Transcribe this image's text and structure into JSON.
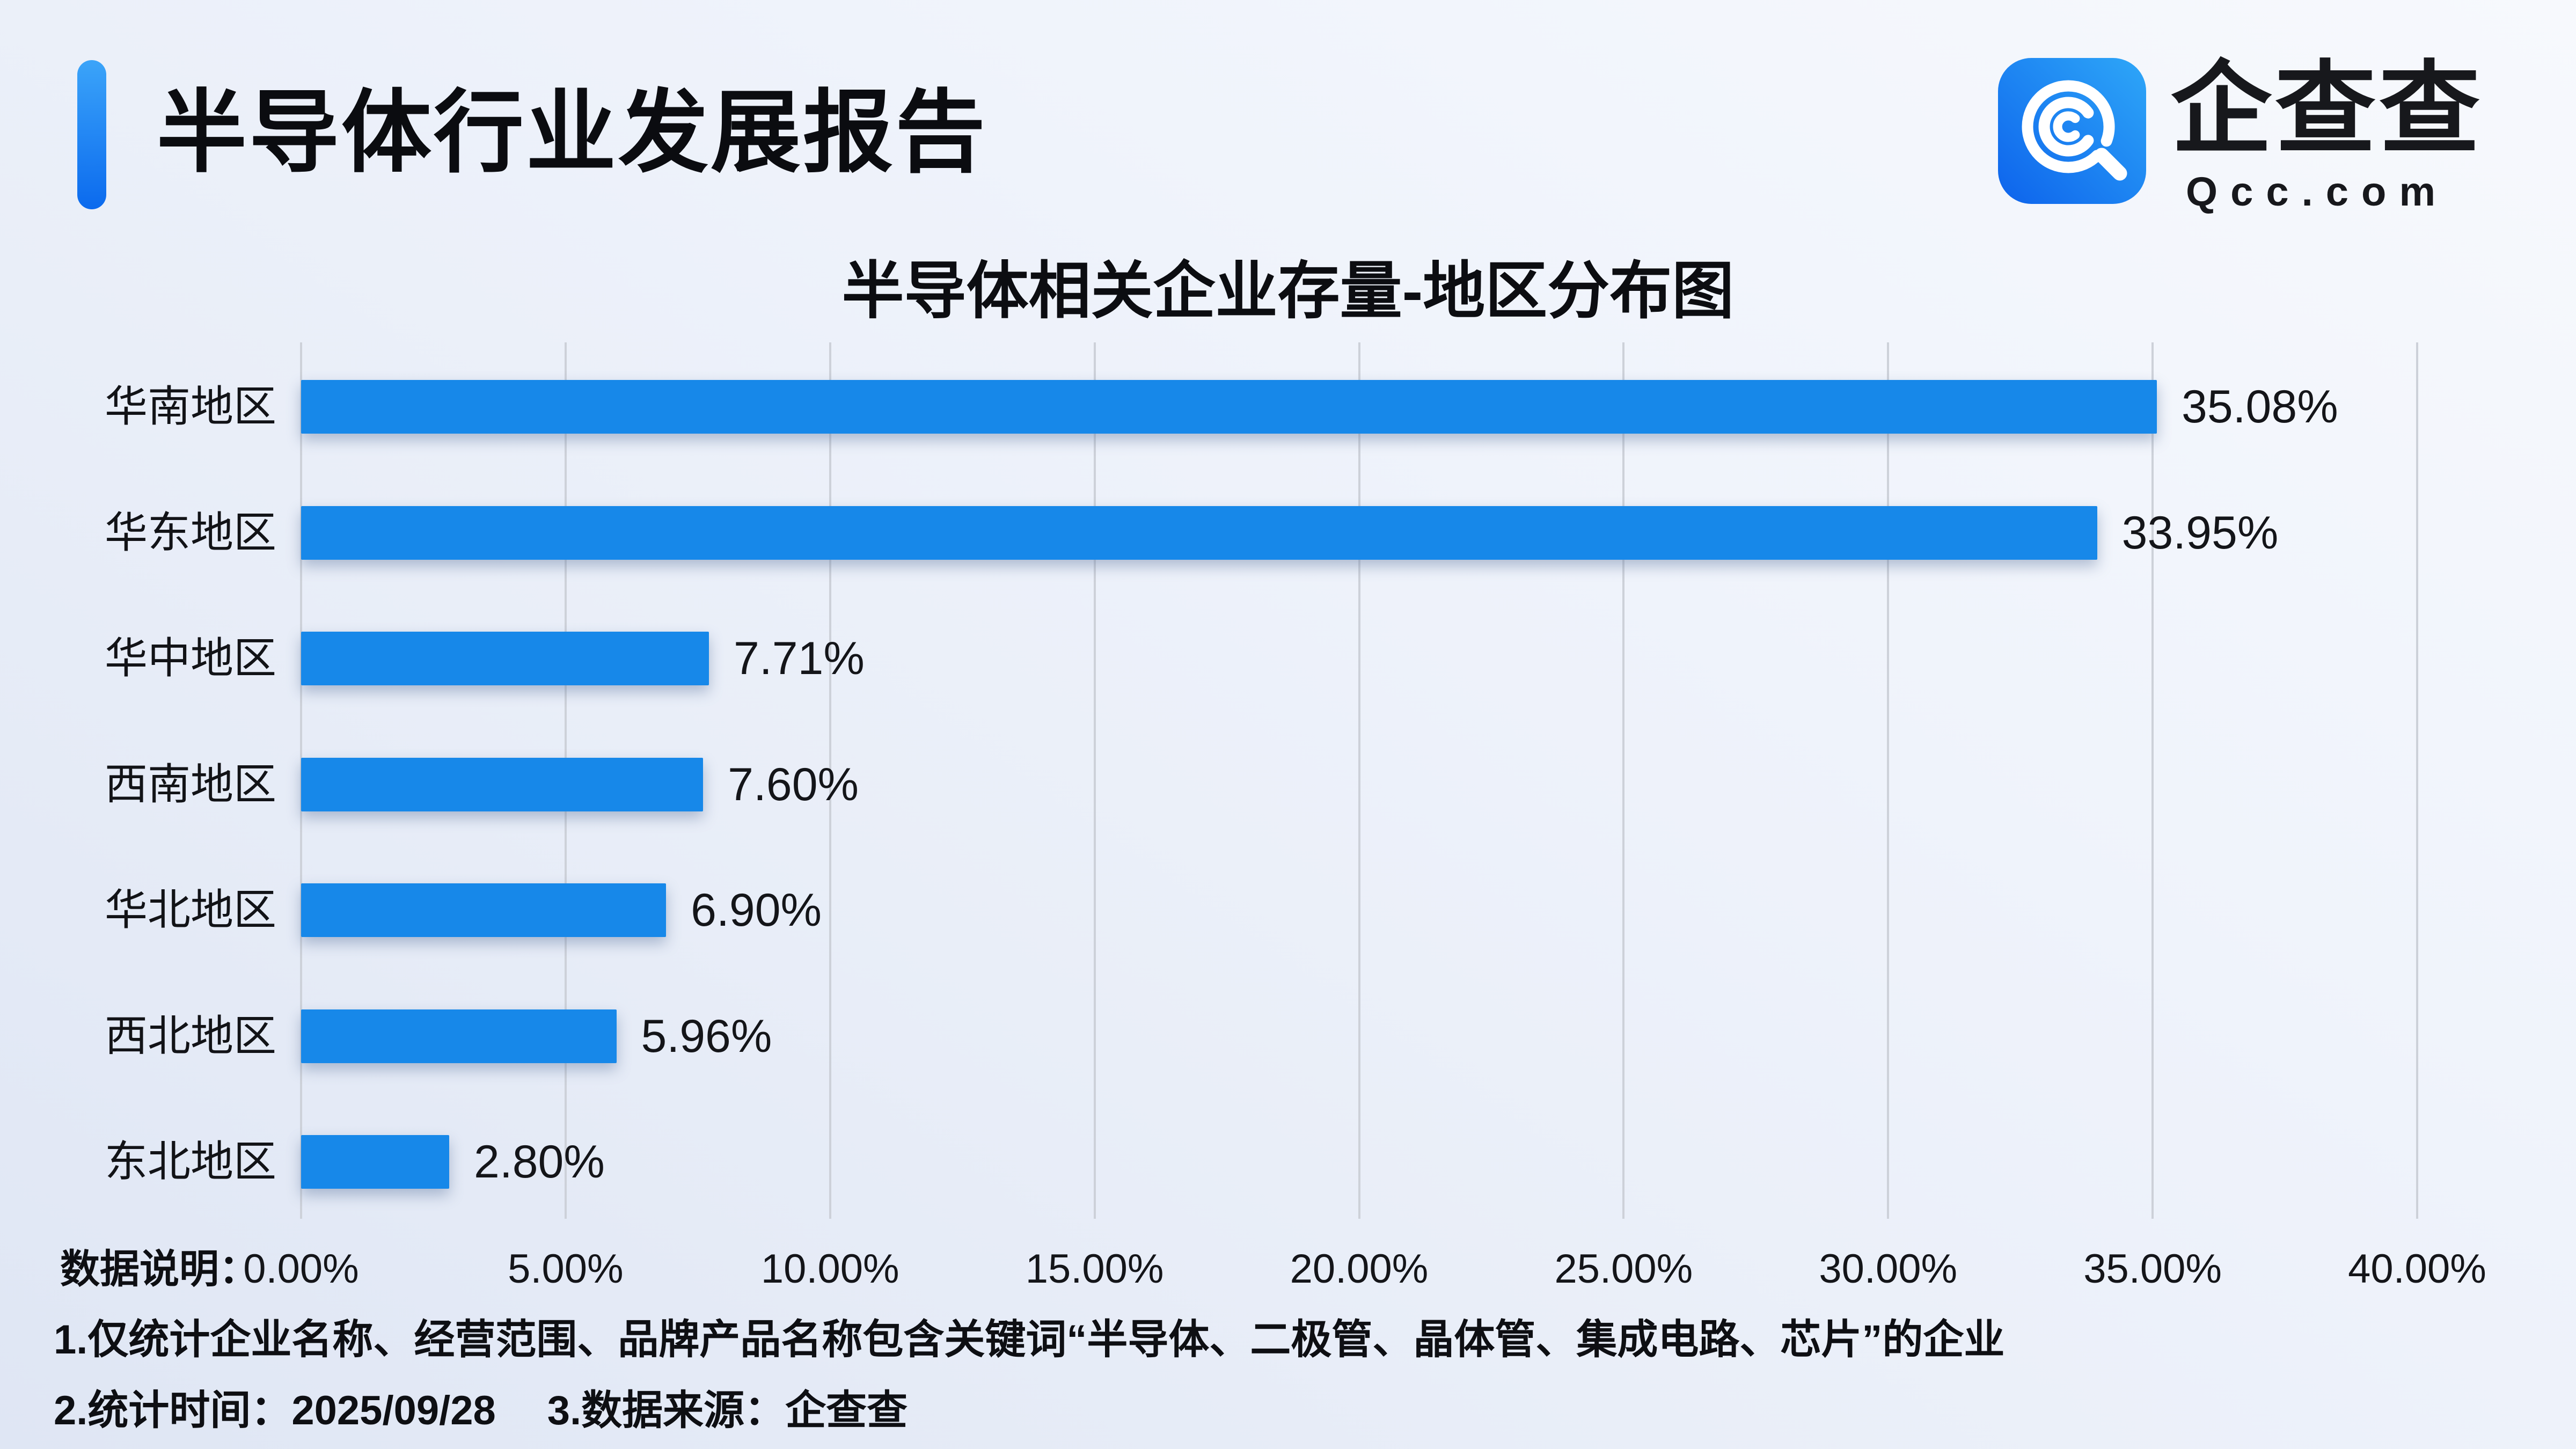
{
  "header": {
    "title": "半导体行业发展报告"
  },
  "logo": {
    "brand": "企查查",
    "domain": "Qcc.com",
    "icon": "qcc-magnifier-spiral-icon",
    "icon_gradient_start": "#0d63ec",
    "icon_gradient_end": "#2ea7f8"
  },
  "chart_data": {
    "type": "bar",
    "orientation": "horizontal",
    "title": "半导体相关企业存量-地区分布图",
    "categories": [
      "华南地区",
      "华东地区",
      "华中地区",
      "西南地区",
      "华北地区",
      "西北地区",
      "东北地区"
    ],
    "values": [
      35.08,
      33.95,
      7.71,
      7.6,
      6.9,
      5.96,
      2.8
    ],
    "value_labels": [
      "35.08%",
      "33.95%",
      "7.71%",
      "7.60%",
      "6.90%",
      "5.96%",
      "2.80%"
    ],
    "x_ticks": [
      "0.00%",
      "5.00%",
      "10.00%",
      "15.00%",
      "20.00%",
      "25.00%",
      "30.00%",
      "35.00%",
      "40.00%"
    ],
    "xlim": [
      0,
      40
    ],
    "xlabel": "",
    "ylabel": "",
    "grid": true,
    "legend_position": "none",
    "bar_color": "#1788e9"
  },
  "footer": {
    "note_label": "数据说明：",
    "note1": "1.仅统计企业名称、经营范围、品牌产品名称包含关键词“半导体、二极管、晶体管、集成电路、芯片”的企业",
    "note2": "2.统计时间：2025/09/28",
    "note3": "3.数据来源：企查查"
  }
}
